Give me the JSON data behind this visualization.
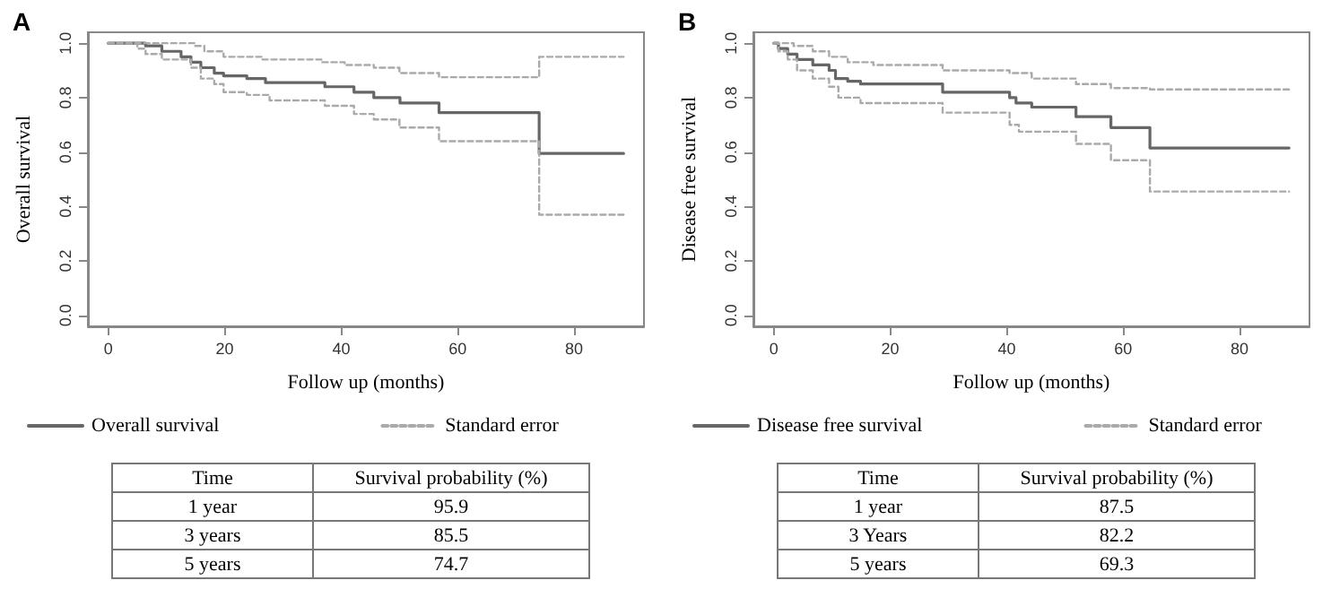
{
  "chart_data": [
    {
      "type": "step",
      "title": "A",
      "xlabel": "Follow up (months)",
      "ylabel": "Overall survival",
      "xlim": [
        -3.5,
        92
      ],
      "ylim": [
        -0.04,
        1.04
      ],
      "xticks": [
        0,
        20,
        40,
        60,
        80
      ],
      "yticks": [
        {
          "value": 0,
          "label": "0.0"
        },
        {
          "value": 0.2,
          "label": "0.2"
        },
        {
          "value": 0.4,
          "label": "0.4"
        },
        {
          "value": 0.6,
          "label": "0.6"
        },
        {
          "value": 0.8,
          "label": "0.8"
        },
        {
          "value": 1,
          "label": "1.0"
        }
      ],
      "grid": false,
      "legend": "bottom",
      "marker": "none",
      "series": [
        {
          "name": "Overall survival",
          "color": "#666666",
          "line_style": "solid",
          "x": [
            0,
            4.7,
            6.4,
            9.2,
            12.5,
            14.2,
            15.9,
            18.2,
            19.8,
            23.8,
            27,
            37.2,
            42.2,
            45.6,
            50.1,
            56.8,
            74,
            88.5
          ],
          "values": [
            1,
            1,
            0.99,
            0.97,
            0.95,
            0.93,
            0.91,
            0.89,
            0.88,
            0.87,
            0.855,
            0.84,
            0.82,
            0.8,
            0.78,
            0.745,
            0.595,
            0.595
          ]
        },
        {
          "name": "Standard error",
          "color": "#aaaaaa",
          "line_style": "dashed",
          "x": [
            0,
            8,
            14.8,
            16.5,
            19.8,
            26.5,
            36.6,
            40.6,
            45.6,
            50,
            56.8,
            74,
            88.5
          ],
          "values": [
            1,
            1,
            0.99,
            0.97,
            0.95,
            0.94,
            0.93,
            0.92,
            0.91,
            0.89,
            0.875,
            0.95,
            0.95
          ]
        },
        {
          "color": "#aaaaaa",
          "line_style": "dashed",
          "x": [
            0,
            4.4,
            5,
            6.4,
            9.2,
            14.2,
            15.9,
            18.2,
            19.8,
            23.8,
            27.7,
            37.2,
            42.2,
            45.6,
            50,
            56.8,
            74,
            88.5
          ],
          "values": [
            1,
            1,
            0.98,
            0.96,
            0.94,
            0.91,
            0.87,
            0.85,
            0.82,
            0.81,
            0.79,
            0.77,
            0.74,
            0.72,
            0.69,
            0.64,
            0.37,
            0.37
          ]
        }
      ],
      "annotations": [
        "Time",
        "Survival probability (%)",
        "1 year",
        "95.9",
        "3 years",
        "85.5",
        "5 years",
        "74.7"
      ]
    },
    {
      "type": "step",
      "title": "B",
      "xlabel": "Follow up (months)",
      "ylabel": "Disease free survival",
      "xlim": [
        -3.5,
        92
      ],
      "ylim": [
        -0.04,
        1.04
      ],
      "xticks": [
        0,
        20,
        40,
        60,
        80
      ],
      "yticks": [
        {
          "value": 0,
          "label": "0.0"
        },
        {
          "value": 0.2,
          "label": "0.2"
        },
        {
          "value": 0.4,
          "label": "0.4"
        },
        {
          "value": 0.6,
          "label": "0.6"
        },
        {
          "value": 0.8,
          "label": "0.8"
        },
        {
          "value": 1,
          "label": "1.0"
        }
      ],
      "grid": false,
      "legend": "bottom",
      "marker": "none",
      "series": [
        {
          "name": "Disease free survival",
          "color": "#666666",
          "line_style": "solid",
          "x": [
            0,
            0.8,
            2.4,
            4,
            6.7,
            9.5,
            10.6,
            12.7,
            14.9,
            29,
            40.5,
            41.6,
            44.3,
            51.9,
            57.9,
            64.6,
            88.5
          ],
          "values": [
            1,
            0.98,
            0.96,
            0.94,
            0.92,
            0.9,
            0.87,
            0.86,
            0.85,
            0.82,
            0.8,
            0.78,
            0.765,
            0.73,
            0.69,
            0.615,
            0.615
          ]
        },
        {
          "name": "Standard error",
          "color": "#aaaaaa",
          "line_style": "dashed",
          "x": [
            0,
            1.8,
            3.4,
            6.7,
            9.5,
            12.7,
            17.1,
            29,
            40.5,
            44.3,
            51.9,
            57.9,
            64.6,
            88.5
          ],
          "values": [
            1,
            1,
            0.99,
            0.97,
            0.95,
            0.93,
            0.92,
            0.9,
            0.89,
            0.87,
            0.85,
            0.835,
            0.83,
            0.83
          ]
        },
        {
          "color": "#aaaaaa",
          "line_style": "dashed",
          "x": [
            0,
            0.8,
            2.4,
            4,
            6.7,
            9.5,
            11.1,
            14.9,
            29,
            40.5,
            42.1,
            51.9,
            57.9,
            64.6,
            88.5
          ],
          "values": [
            1,
            0.97,
            0.94,
            0.9,
            0.87,
            0.84,
            0.8,
            0.78,
            0.745,
            0.7,
            0.675,
            0.63,
            0.57,
            0.455,
            0.455
          ]
        }
      ],
      "annotations": [
        "Time",
        "Survival probability (%)",
        "1 year",
        "87.5",
        "3 Years",
        "82.2",
        "5 years",
        "69.3"
      ]
    }
  ]
}
